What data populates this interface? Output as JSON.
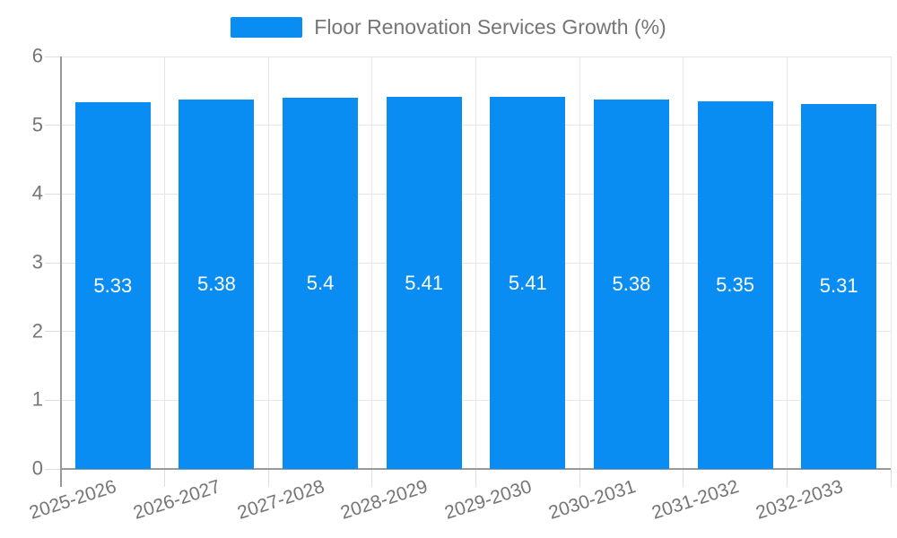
{
  "chart_data": {
    "type": "bar",
    "title": "Floor Renovation Services Growth (%)",
    "categories": [
      "2025-2026",
      "2026-2027",
      "2027-2028",
      "2028-2029",
      "2029-2030",
      "2030-2031",
      "2031-2032",
      "2032-2033"
    ],
    "values": [
      5.33,
      5.38,
      5.4,
      5.41,
      5.41,
      5.38,
      5.35,
      5.31
    ],
    "value_labels": [
      "5.33",
      "5.38",
      "5.4",
      "5.41",
      "5.41",
      "5.38",
      "5.35",
      "5.31"
    ],
    "xlabel": "",
    "ylabel": "",
    "ylim": [
      0,
      6
    ],
    "yticks": [
      0,
      1,
      2,
      3,
      4,
      5,
      6
    ],
    "grid": true,
    "legend_position": "top-center",
    "colors": {
      "bar": "#0a8df2",
      "grid": "#e6e6e6",
      "axis": "#999999",
      "tick": "#dddddd",
      "text": "#757575",
      "value_text": "#ffffff",
      "background": "#ffffff"
    }
  }
}
